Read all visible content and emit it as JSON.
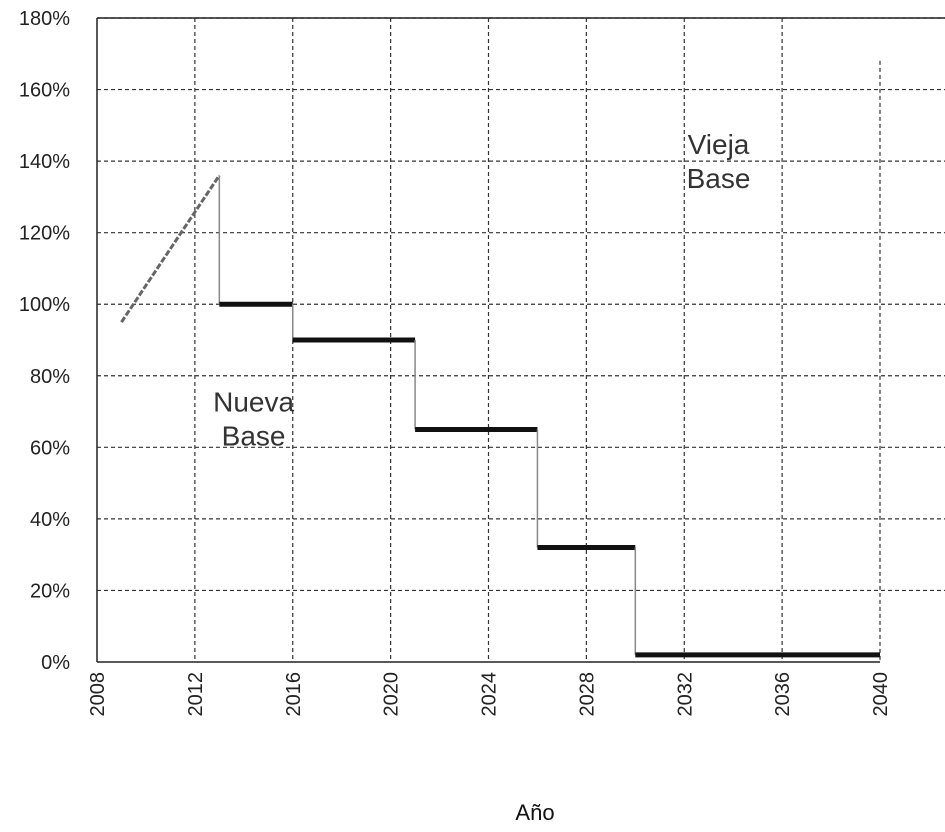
{
  "chart_data": {
    "type": "line",
    "title": "",
    "xlabel": "Año",
    "ylabel": "",
    "xlim": [
      2008,
      2040
    ],
    "ylim": [
      0,
      180
    ],
    "x_ticks": [
      2008,
      2012,
      2016,
      2020,
      2024,
      2028,
      2032,
      2036,
      2040
    ],
    "y_ticks": [
      "0%",
      "20%",
      "40%",
      "60%",
      "80%",
      "100%",
      "120%",
      "140%",
      "160%",
      "180%"
    ],
    "y_tick_values": [
      0,
      20,
      40,
      60,
      80,
      100,
      120,
      140,
      160,
      180
    ],
    "grid": true,
    "series": [
      {
        "values": [
          {
            "x": 2009,
            "y": 95
          },
          {
            "x": 2013,
            "y": 136
          },
          {
            "x": 2013,
            "y": 100
          },
          {
            "x": 2016,
            "y": 100
          },
          {
            "x": 2016,
            "y": 90
          },
          {
            "x": 2021,
            "y": 90
          },
          {
            "x": 2021,
            "y": 65
          },
          {
            "x": 2026,
            "y": 65
          },
          {
            "x": 2026,
            "y": 32
          },
          {
            "x": 2030,
            "y": 32
          },
          {
            "x": 2030,
            "y": 2
          },
          {
            "x": 2040,
            "y": 2
          }
        ]
      }
    ],
    "annotations": [
      {
        "lines": [
          "Vieja",
          "Base"
        ],
        "x": 2033.4,
        "y": 142
      },
      {
        "lines": [
          "Nueva",
          "Base"
        ],
        "x": 2014.4,
        "y": 70
      }
    ],
    "colors": {
      "line": "#111111",
      "ramp": "#666666",
      "grid": "#333333"
    }
  }
}
